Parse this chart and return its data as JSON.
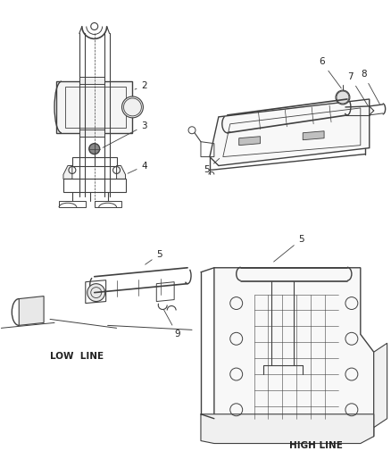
{
  "bg_color": "#ffffff",
  "line_color": "#404040",
  "text_color": "#222222",
  "label_fontsize": 7.5,
  "subtext_fontsize": 7.5,
  "figsize": [
    4.39,
    5.33
  ],
  "dpi": 100
}
